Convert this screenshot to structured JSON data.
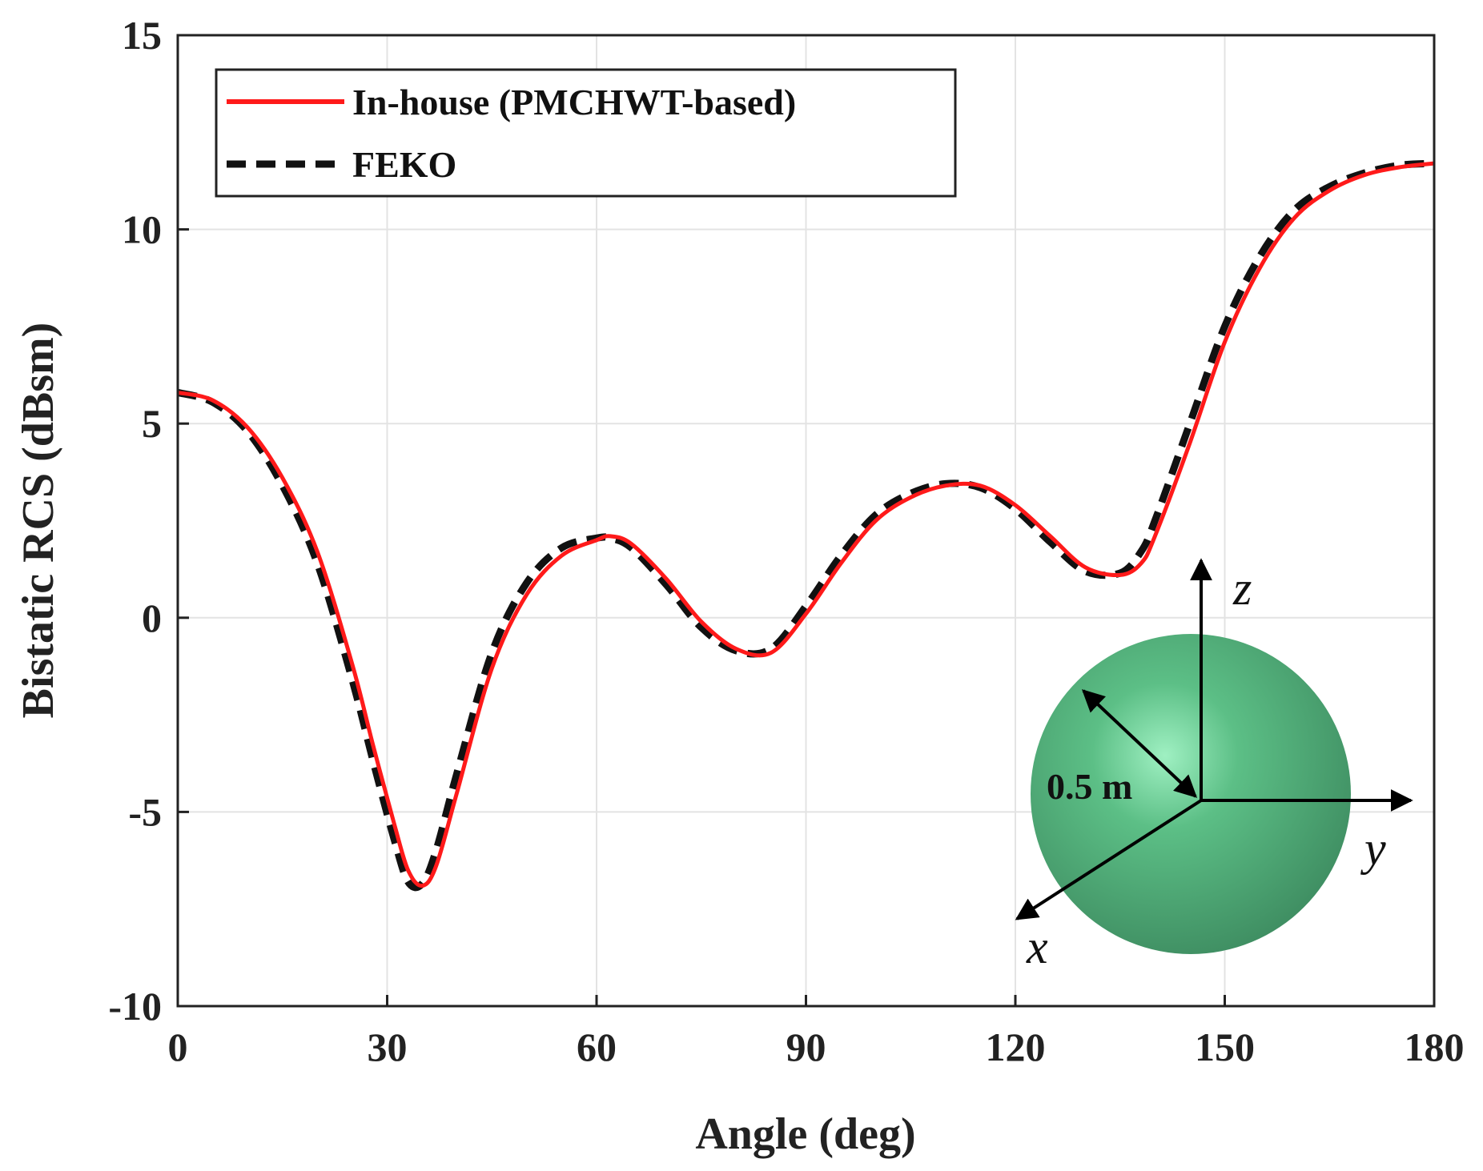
{
  "chart_data": {
    "type": "line",
    "xlabel": "Angle (deg)",
    "ylabel": "Bistatic RCS (dBsm)",
    "xlim": [
      0,
      180
    ],
    "ylim": [
      -10,
      15
    ],
    "xticks": [
      0,
      30,
      60,
      90,
      120,
      150,
      180
    ],
    "yticks": [
      -10,
      -5,
      0,
      5,
      10,
      15
    ],
    "grid": true,
    "legend_position": "top-left",
    "series": [
      {
        "name": "In-house (PMCHWT-based)",
        "color": "#ff1a1a",
        "style": "solid",
        "x": [
          0,
          5,
          10,
          15,
          20,
          25,
          28,
          31,
          33,
          35,
          37,
          40,
          45,
          50,
          55,
          60,
          62,
          65,
          70,
          75,
          80,
          85,
          90,
          95,
          100,
          105,
          110,
          115,
          120,
          125,
          130,
          135,
          138,
          140,
          145,
          150,
          155,
          160,
          165,
          170,
          175,
          180
        ],
        "y": [
          5.8,
          5.6,
          4.9,
          3.6,
          1.7,
          -1.2,
          -3.3,
          -5.3,
          -6.5,
          -6.9,
          -6.4,
          -4.5,
          -1.3,
          0.6,
          1.6,
          2.0,
          2.1,
          1.9,
          1.0,
          -0.1,
          -0.8,
          -0.9,
          0.1,
          1.4,
          2.5,
          3.1,
          3.4,
          3.4,
          2.9,
          2.1,
          1.3,
          1.1,
          1.4,
          2.1,
          4.5,
          7.1,
          9.0,
          10.3,
          11.0,
          11.4,
          11.6,
          11.7
        ]
      },
      {
        "name": "FEKO",
        "color": "#111111",
        "style": "dashed",
        "x": [
          0,
          5,
          10,
          15,
          20,
          25,
          28,
          31,
          33,
          35,
          37,
          40,
          45,
          50,
          55,
          60,
          62,
          65,
          70,
          75,
          80,
          85,
          90,
          95,
          100,
          105,
          110,
          115,
          120,
          125,
          130,
          135,
          138,
          140,
          145,
          150,
          155,
          160,
          165,
          170,
          175,
          180
        ],
        "y": [
          5.8,
          5.55,
          4.8,
          3.4,
          1.4,
          -1.6,
          -3.7,
          -5.7,
          -6.8,
          -6.85,
          -6.0,
          -4.0,
          -0.9,
          0.9,
          1.8,
          2.05,
          2.05,
          1.8,
          0.85,
          -0.25,
          -0.85,
          -0.8,
          0.3,
          1.6,
          2.65,
          3.2,
          3.45,
          3.35,
          2.8,
          1.95,
          1.2,
          1.15,
          1.7,
          2.5,
          5.0,
          7.5,
          9.3,
          10.5,
          11.1,
          11.45,
          11.65,
          11.7
        ]
      }
    ]
  },
  "inset": {
    "axis_x": "x",
    "axis_y": "y",
    "axis_z": "z",
    "radius_label": "0.5 m",
    "sphere_color": "#4fae7a"
  }
}
